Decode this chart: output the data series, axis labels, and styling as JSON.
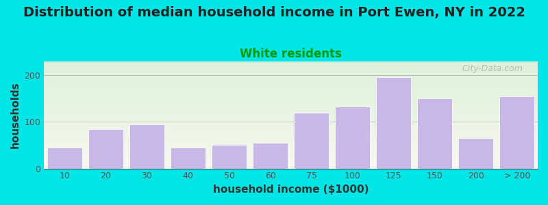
{
  "title": "Distribution of median household income in Port Ewen, NY in 2022",
  "subtitle": "White residents",
  "xlabel": "household income ($1000)",
  "ylabel": "households",
  "background_outer": "#00e5e5",
  "bar_color": "#c8b8e8",
  "bar_edge_color": "#ffffff",
  "categories": [
    "10",
    "20",
    "30",
    "40",
    "50",
    "60",
    "75",
    "100",
    "125",
    "150",
    "200",
    "> 200"
  ],
  "values": [
    45,
    85,
    95,
    45,
    50,
    55,
    120,
    132,
    195,
    150,
    65,
    155
  ],
  "ylim": [
    0,
    230
  ],
  "yticks": [
    0,
    100,
    200
  ],
  "title_fontsize": 14,
  "subtitle_fontsize": 12,
  "subtitle_color": "#009900",
  "axis_label_fontsize": 11,
  "tick_fontsize": 9,
  "watermark": "City-Data.com",
  "chart_bg_top": "#ddf0d8",
  "chart_bg_bottom": "#f8f8f0"
}
